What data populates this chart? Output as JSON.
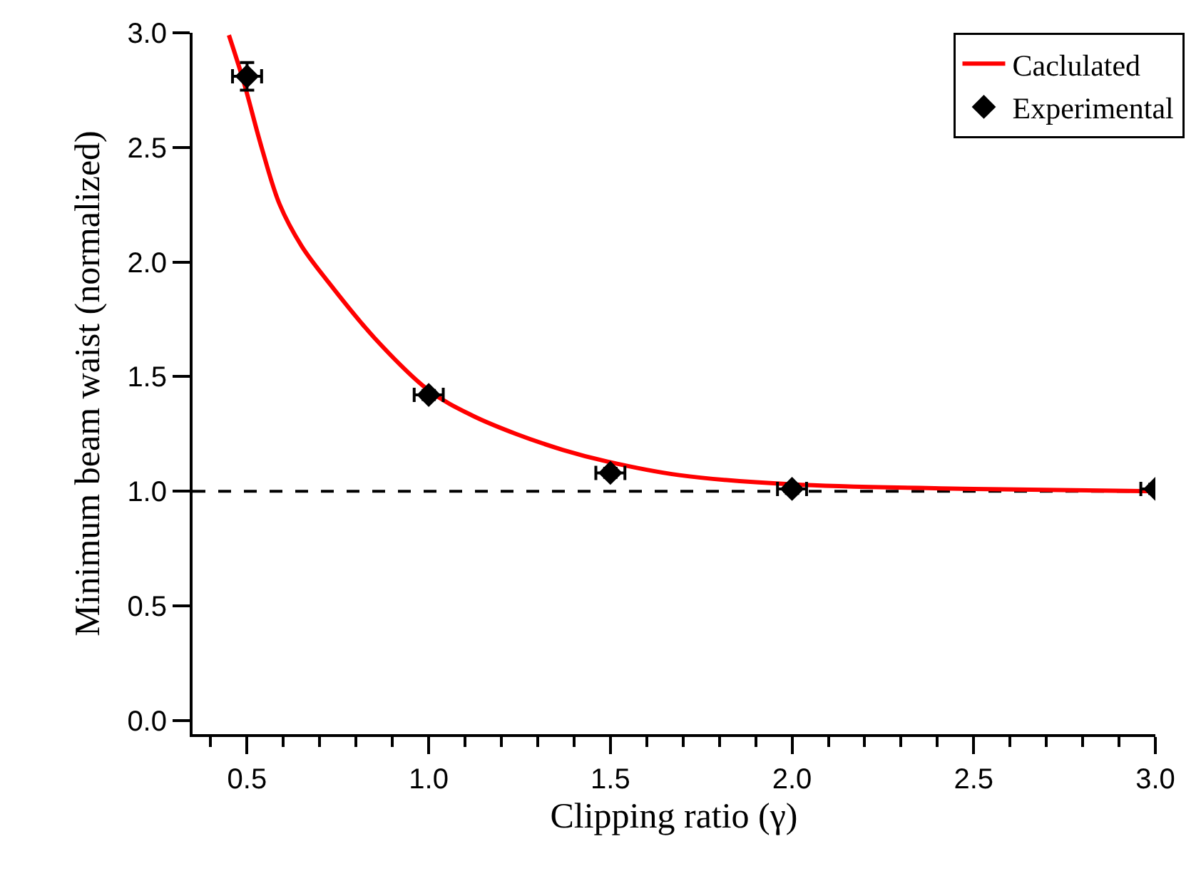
{
  "chart_data": {
    "type": "line",
    "xlabel": "Clipping ratio (γ)",
    "ylabel": "Minimum beam waist (normalized)",
    "xlim": [
      0.35,
      3.0
    ],
    "xticks": [
      {
        "value": 0.5,
        "label": "0.5"
      },
      {
        "value": 1.0,
        "label": "1.0"
      },
      {
        "value": 1.5,
        "label": "1.5"
      },
      {
        "value": 2.0,
        "label": "2.0"
      },
      {
        "value": 2.5,
        "label": "2.5"
      },
      {
        "value": 3.0,
        "label": "3.0"
      }
    ],
    "ylim": [
      -0.06,
      3.0
    ],
    "yticks": [
      {
        "value": 0,
        "label": "0.0"
      },
      {
        "value": 0.5,
        "label": "0.5"
      },
      {
        "value": 1.0,
        "label": "1.0"
      },
      {
        "value": 1.5,
        "label": "1.5"
      },
      {
        "value": 2.0,
        "label": "2.0"
      },
      {
        "value": 2.5,
        "label": "2.5"
      },
      {
        "value": 3.0,
        "label": "3.0"
      }
    ],
    "grid": false,
    "legend": "top right",
    "ref_lines": [
      {
        "axis": "y",
        "value": 1.0,
        "color": "#000000",
        "line_style": "dashed"
      }
    ],
    "series": [
      {
        "name": "Caclulated",
        "color": "#ff0000",
        "marker": "none",
        "line_style": "solid",
        "x": [
          0.45,
          0.49,
          0.54,
          0.59,
          0.65,
          0.72,
          0.85,
          1.0,
          1.12,
          1.24,
          1.37,
          1.49,
          1.69,
          2.0,
          2.5,
          3.0
        ],
        "values": [
          2.99,
          2.79,
          2.5,
          2.25,
          2.07,
          1.92,
          1.67,
          1.44,
          1.33,
          1.25,
          1.18,
          1.13,
          1.07,
          1.03,
          1.01,
          1.0
        ]
      },
      {
        "name": "Experimental",
        "type": "scatter",
        "color": "#000000",
        "marker": "diamond",
        "x": [
          0.5,
          1.0,
          1.5,
          2.0,
          3.0
        ],
        "values": [
          2.81,
          1.42,
          1.08,
          1.01,
          1.01
        ],
        "errors": [
          0.06,
          0.02,
          0.02,
          0.02,
          0.02
        ],
        "xerrors": [
          0.04,
          0.04,
          0.04,
          0.04,
          0.04
        ]
      }
    ]
  }
}
